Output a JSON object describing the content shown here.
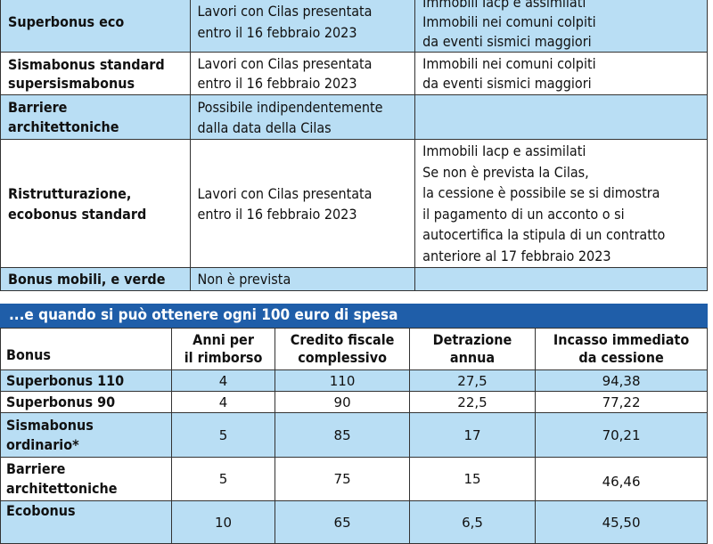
{
  "top_table": {
    "rows": [
      {
        "name": [
          "Superbonus eco"
        ],
        "cond": [
          "Lavori con Cilas presentata",
          "entro il 16 febbraio 2023"
        ],
        "notes": [
          "Immobili Iacp e assimilati",
          "Immobili nei comuni colpiti",
          "da eventi sismici maggiori"
        ]
      },
      {
        "name": [
          "Sismabonus standard",
          "supersismabonus"
        ],
        "cond": [
          "Lavori con Cilas presentata",
          "entro il 16 febbraio 2023"
        ],
        "notes": [
          "Immobili nei comuni colpiti",
          "da eventi sismici maggiori"
        ]
      },
      {
        "name": [
          "Barriere",
          "architettoniche"
        ],
        "cond": [
          "Possibile indipendentemente",
          "dalla data della Cilas"
        ],
        "notes": []
      },
      {
        "name": [
          "Ristrutturazione,",
          "ecobonus standard"
        ],
        "cond": [
          "Lavori con Cilas presentata",
          "entro il 16 febbraio 2023"
        ],
        "notes": [
          "Immobili Iacp e assimilati",
          "Se non è prevista la Cilas,",
          "la cessione è possibile se si dimostra",
          "il pagamento di un acconto o si",
          "autocertifica la stipula di un contratto",
          "anteriore al 17 febbraio 2023"
        ]
      },
      {
        "name": [
          "Bonus mobili, e verde"
        ],
        "cond": [
          "Non è prevista"
        ],
        "notes": []
      }
    ]
  },
  "section_title": "...e quando si può ottenere ogni 100 euro di spesa",
  "bottom_table": {
    "headers": [
      [
        "Bonus"
      ],
      [
        "Anni per",
        "il rimborso"
      ],
      [
        "Credito fiscale",
        "complessivo"
      ],
      [
        "Detrazione",
        "annua"
      ],
      [
        "Incasso immediato",
        "da cessione"
      ]
    ],
    "rows": [
      {
        "name": [
          "Superbonus 110"
        ],
        "values": [
          "4",
          "110",
          "27,5",
          "94,38"
        ]
      },
      {
        "name": [
          "Superbonus 90"
        ],
        "values": [
          "4",
          "90",
          "22,5",
          "77,22"
        ]
      },
      {
        "name": [
          "Sismabonus",
          "ordinario*"
        ],
        "values": [
          "5",
          "85",
          "17",
          "70,21"
        ]
      },
      {
        "name": [
          "Barriere",
          "architettoniche"
        ],
        "values": [
          "5",
          "75",
          "15",
          "46,46"
        ]
      },
      {
        "name": [
          "Ecobonus"
        ],
        "values": [
          "10",
          "65",
          "6,5",
          "45,50"
        ]
      }
    ]
  }
}
